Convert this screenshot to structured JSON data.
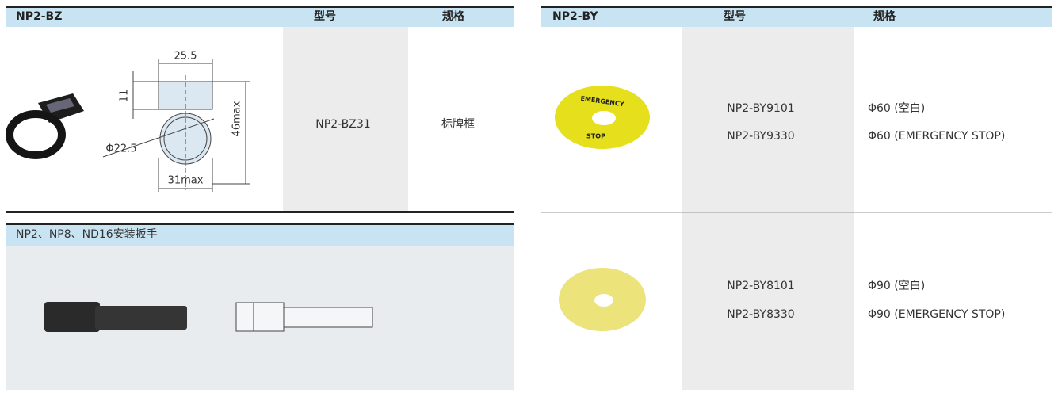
{
  "left_top": {
    "header": {
      "title": "NP2-BZ",
      "col_model": "型号",
      "col_spec": "规格"
    },
    "drawing": {
      "labels": [
        "25.5",
        "11",
        "46max",
        "Φ22.5",
        "31max"
      ]
    },
    "row": {
      "model": "NP2-BZ31",
      "spec": "标牌框"
    }
  },
  "left_bottom": {
    "header": {
      "title": "NP2、NP8、ND16安装扳手"
    }
  },
  "right": {
    "header": {
      "title": "NP2-BY",
      "col_model": "型号",
      "col_spec": "规格"
    },
    "rows": [
      {
        "image_text": [
          "EMERGENCY",
          "STOP"
        ],
        "models": [
          "NP2-BY9101",
          "NP2-BY9330"
        ],
        "specs": [
          "Φ60 (空白)",
          "Φ60 (EMERGENCY STOP)"
        ]
      },
      {
        "models": [
          "NP2-BY8101",
          "NP2-BY8330"
        ],
        "specs": [
          "Φ90 (空白)",
          "Φ90 (EMERGENCY STOP)"
        ]
      }
    ]
  }
}
